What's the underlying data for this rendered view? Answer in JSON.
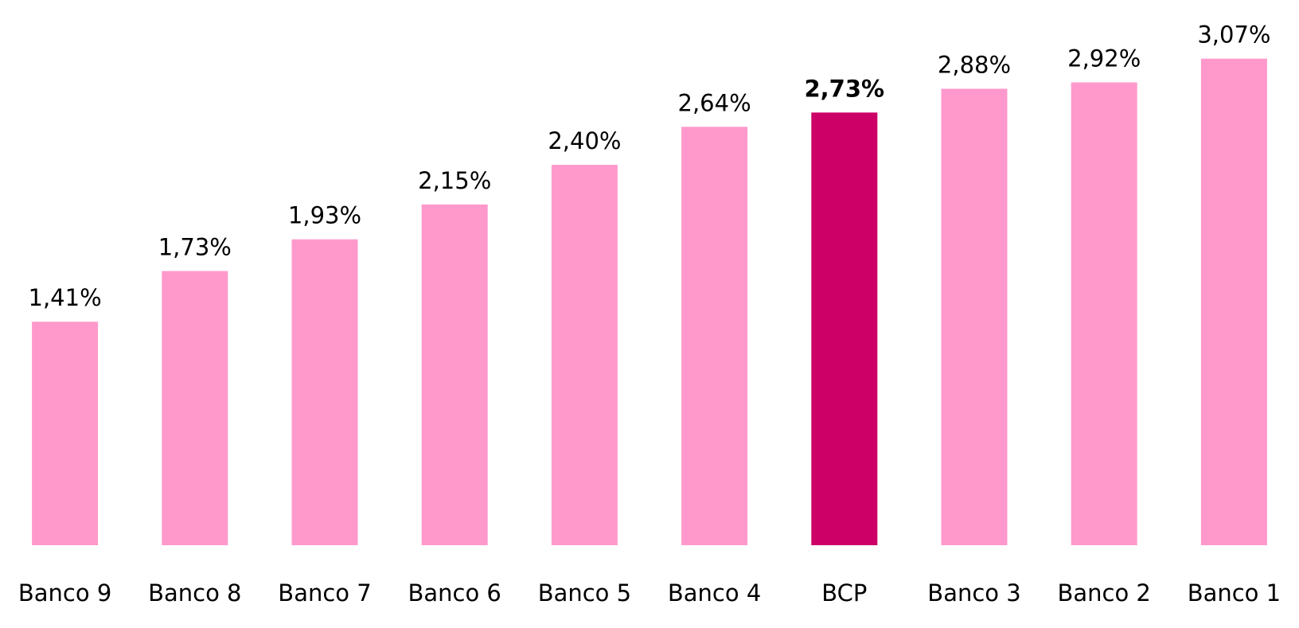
{
  "chart_data": {
    "type": "bar",
    "categories": [
      "Banco 9",
      "Banco 8",
      "Banco 7",
      "Banco 6",
      "Banco 5",
      "Banco 4",
      "BCP",
      "Banco 3",
      "Banco 2",
      "Banco 1"
    ],
    "values": [
      1.41,
      1.73,
      1.93,
      2.15,
      2.4,
      2.64,
      2.73,
      2.88,
      2.92,
      3.07
    ],
    "value_labels": [
      "1,41%",
      "1,73%",
      "1,93%",
      "2,15%",
      "2,40%",
      "2,64%",
      "2,73%",
      "2,88%",
      "2,92%",
      "3,07%"
    ],
    "colors": [
      "#ff99cc",
      "#ff99cc",
      "#ff99cc",
      "#ff99cc",
      "#ff99cc",
      "#ff99cc",
      "#cc0066",
      "#ff99cc",
      "#ff99cc",
      "#ff99cc"
    ],
    "bold_labels": [
      false,
      false,
      false,
      false,
      false,
      false,
      true,
      false,
      false,
      false
    ],
    "ylim": [
      0,
      3.44
    ]
  }
}
